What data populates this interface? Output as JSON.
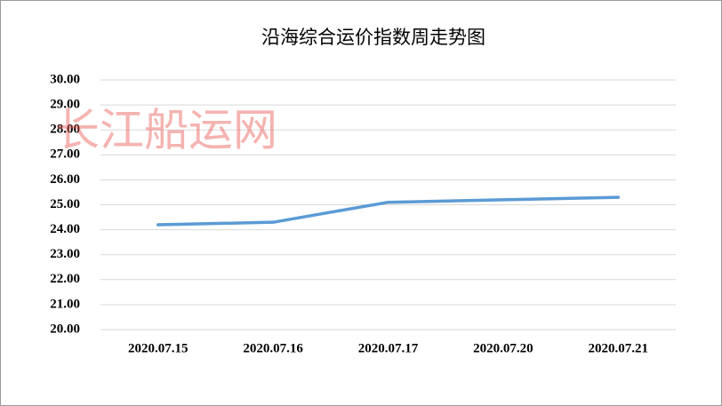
{
  "chart_data": {
    "type": "line",
    "title": "沿海综合运价指数周走势图",
    "watermark": "长江船运网",
    "categories": [
      "2020.07.15",
      "2020.07.16",
      "2020.07.17",
      "2020.07.20",
      "2020.07.21"
    ],
    "values": [
      24.2,
      24.3,
      25.1,
      25.2,
      25.3
    ],
    "color": "#5b9bd5",
    "ylim": [
      20,
      30
    ],
    "yticks": [
      {
        "value": 20,
        "label": "20.00"
      },
      {
        "value": 21,
        "label": "21.00"
      },
      {
        "value": 22,
        "label": "22.00"
      },
      {
        "value": 23,
        "label": "23.00"
      },
      {
        "value": 24,
        "label": "24.00"
      },
      {
        "value": 25,
        "label": "25.00"
      },
      {
        "value": 26,
        "label": "26.00"
      },
      {
        "value": 27,
        "label": "27.00"
      },
      {
        "value": 28,
        "label": "28.00"
      },
      {
        "value": 29,
        "label": "29.00"
      },
      {
        "value": 30,
        "label": "30.00"
      }
    ],
    "grid": true
  }
}
